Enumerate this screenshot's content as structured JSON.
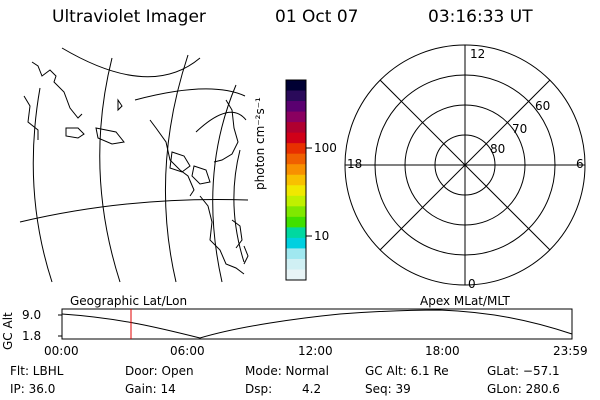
{
  "header": {
    "instrument": "Ultraviolet Imager",
    "date": "01 Oct 07",
    "time": "03:16:33 UT"
  },
  "colorbar": {
    "unit_label": "photon cm⁻²s⁻¹",
    "ticks": [
      "100",
      "10"
    ],
    "colors": [
      "#000033",
      "#2a0a5a",
      "#5a0070",
      "#8a0060",
      "#b00030",
      "#d00018",
      "#e83000",
      "#f06000",
      "#f89000",
      "#f8c000",
      "#f0e800",
      "#c0f000",
      "#80e800",
      "#40e000",
      "#00d8a0",
      "#00d0e0",
      "#a0e8f0",
      "#d0f0f4",
      "#e8f4f6"
    ]
  },
  "polar_plot": {
    "mlt_labels": {
      "top": "12",
      "left": "18",
      "right": "6",
      "bottom": "0"
    },
    "lat_labels": [
      "60",
      "70",
      "80"
    ]
  },
  "timeline": {
    "left_title": "Geographic Lat/Lon",
    "right_title": "Apex MLat/MLT",
    "axis_label": "GC Alt",
    "y_ticks": [
      "9.0",
      "1.8"
    ],
    "x_ticks": [
      "00:00",
      "06:00",
      "12:00",
      "18:00",
      "23:59"
    ],
    "cursor_color": "#e00000"
  },
  "info": {
    "flt": "Flt: LBHL",
    "door": "Door: Open",
    "mode": "Mode: Normal",
    "gc_alt": "GC Alt: 6.1 Re",
    "glat": "GLat: −57.1",
    "ip": "IP: 36.0",
    "gain": "Gain: 14",
    "dsp_label": "Dsp:",
    "dsp_value": "4.2",
    "seq": "Seq: 39",
    "glon": "GLon: 280.6"
  }
}
